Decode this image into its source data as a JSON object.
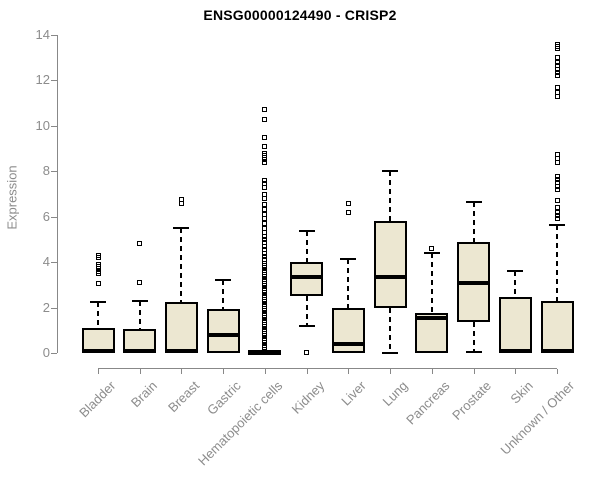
{
  "title": "ENSG00000124490 - CRISP2",
  "colors": {
    "background": "#ffffff",
    "box_fill": "#ece7d1",
    "box_border": "#000000",
    "median": "#000000",
    "whisker": "#000000",
    "axis": "#888888",
    "tick_label": "#8c8c8c",
    "title": "#000000"
  },
  "chart_data": {
    "type": "boxplot",
    "title": "ENSG00000124490 - CRISP2",
    "xlabel": "",
    "ylabel": "Expression",
    "ylim": [
      0,
      14
    ],
    "yticks": [
      0,
      2,
      4,
      6,
      8,
      10,
      12,
      14
    ],
    "grid": false,
    "legend": "none",
    "x_label_rotation_deg": 45,
    "categories": [
      "Bladder",
      "Brain",
      "Breast",
      "Gastric",
      "Hematopoietic cells",
      "Kidney",
      "Liver",
      "Lung",
      "Pancreas",
      "Prostate",
      "Skin",
      "Unknown / Other"
    ],
    "boxes": [
      {
        "label": "Bladder",
        "low": 0,
        "q1": 0,
        "median": 0.07,
        "q3": 1.1,
        "high": 2.25,
        "outliers": [
          3.05,
          3.5,
          3.6,
          3.7,
          3.8,
          3.9,
          4.2,
          4.3
        ]
      },
      {
        "label": "Brain",
        "low": 0,
        "q1": 0,
        "median": 0.07,
        "q3": 1.05,
        "high": 2.3,
        "outliers": [
          3.1,
          4.8
        ]
      },
      {
        "label": "Breast",
        "low": 0,
        "q1": 0,
        "median": 0.07,
        "q3": 2.25,
        "high": 5.5,
        "outliers": [
          6.6,
          6.75
        ]
      },
      {
        "label": "Gastric",
        "low": 0,
        "q1": 0,
        "median": 0.8,
        "q3": 1.95,
        "high": 3.2,
        "outliers": []
      },
      {
        "label": "Hematopoietic cells",
        "low": 0,
        "q1": 0,
        "median": 0.04,
        "q3": 0.08,
        "high": 0.08,
        "outliers": [
          0.25,
          0.35,
          0.45,
          0.55,
          0.65,
          0.75,
          0.85,
          0.95,
          1.05,
          1.15,
          1.25,
          1.35,
          1.45,
          1.55,
          1.65,
          1.75,
          1.85,
          1.95,
          2.05,
          2.15,
          2.25,
          2.35,
          2.45,
          2.55,
          2.65,
          2.75,
          2.85,
          2.95,
          3.05,
          3.15,
          3.25,
          3.35,
          3.45,
          3.55,
          3.65,
          3.75,
          3.85,
          3.95,
          4.1,
          4.25,
          4.4,
          4.55,
          4.7,
          4.85,
          5.0,
          5.15,
          5.3,
          5.5,
          5.7,
          5.9,
          6.1,
          6.3,
          6.55,
          6.8,
          7.0,
          7.3,
          7.45,
          7.6,
          8.4,
          8.5,
          8.6,
          8.7,
          8.8,
          9.1,
          9.5,
          10.3,
          10.7
        ]
      },
      {
        "label": "Kidney",
        "low": 1.2,
        "q1": 2.5,
        "median": 3.35,
        "q3": 4.0,
        "high": 5.35,
        "outliers": [
          0.02
        ]
      },
      {
        "label": "Liver",
        "low": 0,
        "q1": 0,
        "median": 0.4,
        "q3": 2.0,
        "high": 4.15,
        "outliers": [
          6.2,
          6.6
        ]
      },
      {
        "label": "Lung",
        "low": 0,
        "q1": 2.0,
        "median": 3.35,
        "q3": 5.8,
        "high": 8.0,
        "outliers": []
      },
      {
        "label": "Pancreas",
        "low": 0,
        "q1": 0,
        "median": 1.55,
        "q3": 1.75,
        "high": 4.4,
        "outliers": [
          4.6
        ]
      },
      {
        "label": "Prostate",
        "low": 0.05,
        "q1": 1.35,
        "median": 3.1,
        "q3": 4.9,
        "high": 6.65,
        "outliers": []
      },
      {
        "label": "Skin",
        "low": 0,
        "q1": 0,
        "median": 0.07,
        "q3": 2.45,
        "high": 3.6,
        "outliers": []
      },
      {
        "label": "Unknown / Other",
        "low": 0,
        "q1": 0,
        "median": 0.07,
        "q3": 2.3,
        "high": 5.65,
        "outliers": [
          5.9,
          6.05,
          6.2,
          6.4,
          6.7,
          7.2,
          7.35,
          7.5,
          7.65,
          7.75,
          8.4,
          8.55,
          8.75,
          11.3,
          11.45,
          11.7,
          12.2,
          12.35,
          12.5,
          12.65,
          12.8,
          13.0,
          13.4,
          13.5,
          13.6
        ]
      }
    ]
  }
}
